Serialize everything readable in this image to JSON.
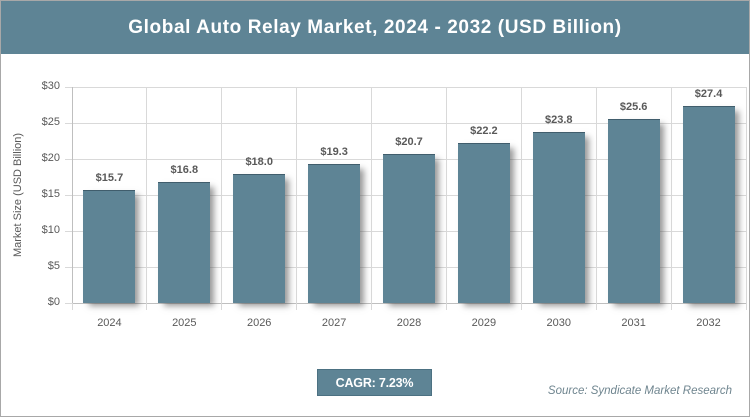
{
  "header": {
    "title": "Global Auto Relay Market, 2024 - 2032 (USD Billion)"
  },
  "chart_data": {
    "type": "bar",
    "title": "Global Auto Relay Market, 2024 - 2032 (USD Billion)",
    "categories": [
      "2024",
      "2025",
      "2026",
      "2027",
      "2028",
      "2029",
      "2030",
      "2031",
      "2032"
    ],
    "values": [
      15.7,
      16.8,
      18.0,
      19.3,
      20.7,
      22.2,
      23.8,
      25.6,
      27.4
    ],
    "value_labels": [
      "$15.7",
      "$16.8",
      "$18.0",
      "$19.3",
      "$20.7",
      "$22.2",
      "$23.8",
      "$25.6",
      "$27.4"
    ],
    "xlabel": "",
    "ylabel": "Market Size (USD Billion)",
    "ylim": [
      0,
      30
    ],
    "ytick_step": 5,
    "ytick_labels": [
      "$0",
      "$5",
      "$10",
      "$15",
      "$20",
      "$25",
      "$30"
    ],
    "grid": true,
    "legend": false
  },
  "footer": {
    "cagr_label": "CAGR: 7.23%",
    "source": "Source: Syndicate Market Research"
  },
  "colors": {
    "accent": "#5E8495",
    "accent_border": "#4C7182",
    "text_label": "#595959",
    "gridline": "#D9D9D9",
    "axis_line": "#BFBFBF",
    "source_text": "#6F858F",
    "frame_border": "#A8A8A8",
    "title_text": "#FFFFFF"
  }
}
